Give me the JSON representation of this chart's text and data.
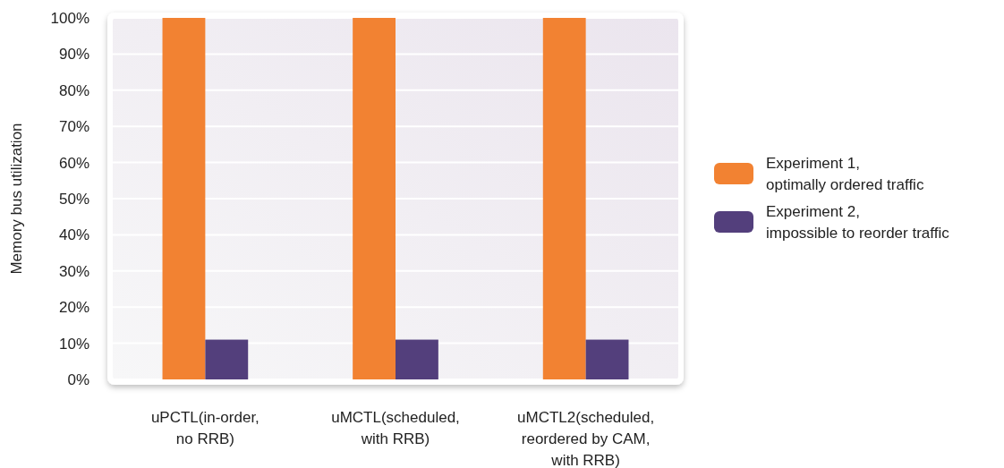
{
  "chart_data": {
    "type": "bar",
    "ylabel": "Memory bus utilization",
    "categories": [
      "uPCTL(in-order, no RRB)",
      "uMCTL(scheduled, with RRB)",
      "uMCTL2(scheduled, reordered by CAM, with RRB)"
    ],
    "series": [
      {
        "name": "Experiment 1, optimally ordered traffic",
        "color": "#f28232",
        "values": [
          100,
          100,
          100
        ]
      },
      {
        "name": "Experiment 2, impossible to reorder traffic",
        "color": "#533f7c",
        "values": [
          11,
          11,
          11
        ]
      }
    ],
    "ylim": [
      0,
      100
    ],
    "yticks": [
      {
        "value": 0,
        "label": "0%"
      },
      {
        "value": 10,
        "label": "10%"
      },
      {
        "value": 20,
        "label": "20%"
      },
      {
        "value": 30,
        "label": "30%"
      },
      {
        "value": 40,
        "label": "40%"
      },
      {
        "value": 50,
        "label": "50%"
      },
      {
        "value": 60,
        "label": "60%"
      },
      {
        "value": 70,
        "label": "70%"
      },
      {
        "value": 80,
        "label": "80%"
      },
      {
        "value": 90,
        "label": "90%"
      },
      {
        "value": 100,
        "label": "100%"
      }
    ],
    "grid": "y",
    "legend": "right"
  }
}
